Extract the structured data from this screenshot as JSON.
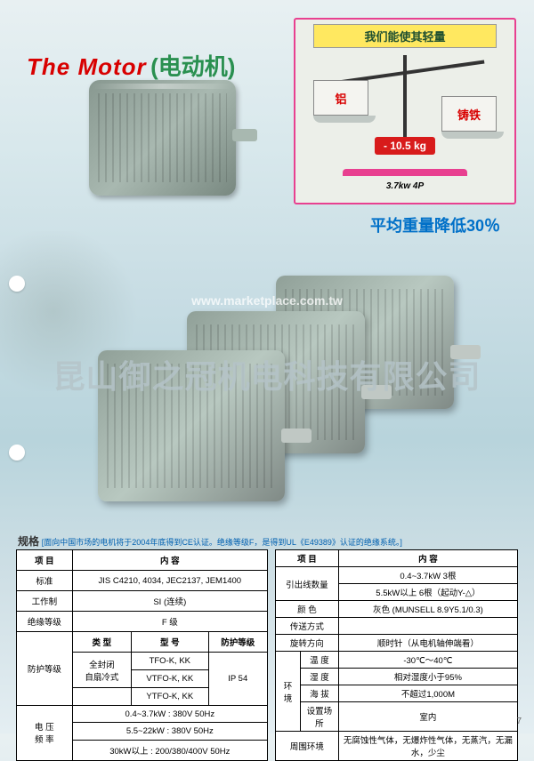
{
  "title": {
    "english": "The Motor",
    "chinese": "(电动机)"
  },
  "scale": {
    "header": "我们能使其轻量",
    "left_material": "铝",
    "right_material": "铸铁",
    "weight_diff": "- 10.5 kg",
    "caption": "3.7kw 4P",
    "subtitle": "平均重量降低30％"
  },
  "watermark": {
    "url": "www.marketplace.com.tw",
    "company": "昆山御之冠机电科技有限公司"
  },
  "spec_heading": {
    "label": "规格",
    "note": "[面向中国市场的电机将于2004年底得到CE认证。绝缘等级F，是得到UL《E49389》认证的绝缘系统。]"
  },
  "left_table": {
    "cols": [
      "项 目",
      "内 容"
    ],
    "rows": [
      [
        "标准",
        "JIS C4210, 4034, JEC2137, JEM1400"
      ],
      [
        "工作制",
        "SI (连续)"
      ],
      [
        "绝缘等级",
        "F 级"
      ]
    ],
    "protect_header": [
      "类 型",
      "型 号",
      "防护等级"
    ],
    "protect_label": "防护等级",
    "protect_rows": [
      [
        "全封闭",
        "TFO-K, KK",
        "IP 54"
      ],
      [
        "自扇冷式",
        "VTFO-K, KK",
        ""
      ],
      [
        "",
        "YTFO-K, KK",
        ""
      ]
    ],
    "voltage_label": "电 压\n频 率",
    "voltage_rows": [
      "0.4~3.7kW : 380V  50Hz",
      "5.5~22kW : 380V  50Hz",
      "30kW以上 : 200/380/400V  50Hz"
    ]
  },
  "right_table": {
    "cols": [
      "项 目",
      "内 容"
    ],
    "leads_label": "引出线数量",
    "leads_rows": [
      "0.4~3.7kW  3根",
      "5.5kW以上 6根（起动Y-△）"
    ],
    "rows": [
      [
        "颜 色",
        "灰色 (MUNSELL 8.9Y5.1/0.3)"
      ],
      [
        "传送方式",
        ""
      ],
      [
        "旋转方向",
        "顺时针（从电机轴伸端看）"
      ]
    ],
    "env_label": "环境",
    "env_rows": [
      [
        "温 度",
        "-30℃～40℃"
      ],
      [
        "湿 度",
        "相对湿度小于95%"
      ],
      [
        "海 拔",
        "不超过1,000M"
      ],
      [
        "设置场所",
        "室内"
      ]
    ],
    "surround_label": "周围环境",
    "surround_value": "无腐蚀性气体，无爆炸性气体，无蒸汽，无漏水，少尘"
  },
  "page_number": "7",
  "colors": {
    "title_red": "#d80000",
    "title_green": "#2a9050",
    "scale_border": "#e84090",
    "scale_header_bg": "#ffe860",
    "subtitle_blue": "#0070c8",
    "weight_bg": "#d81b1b"
  }
}
